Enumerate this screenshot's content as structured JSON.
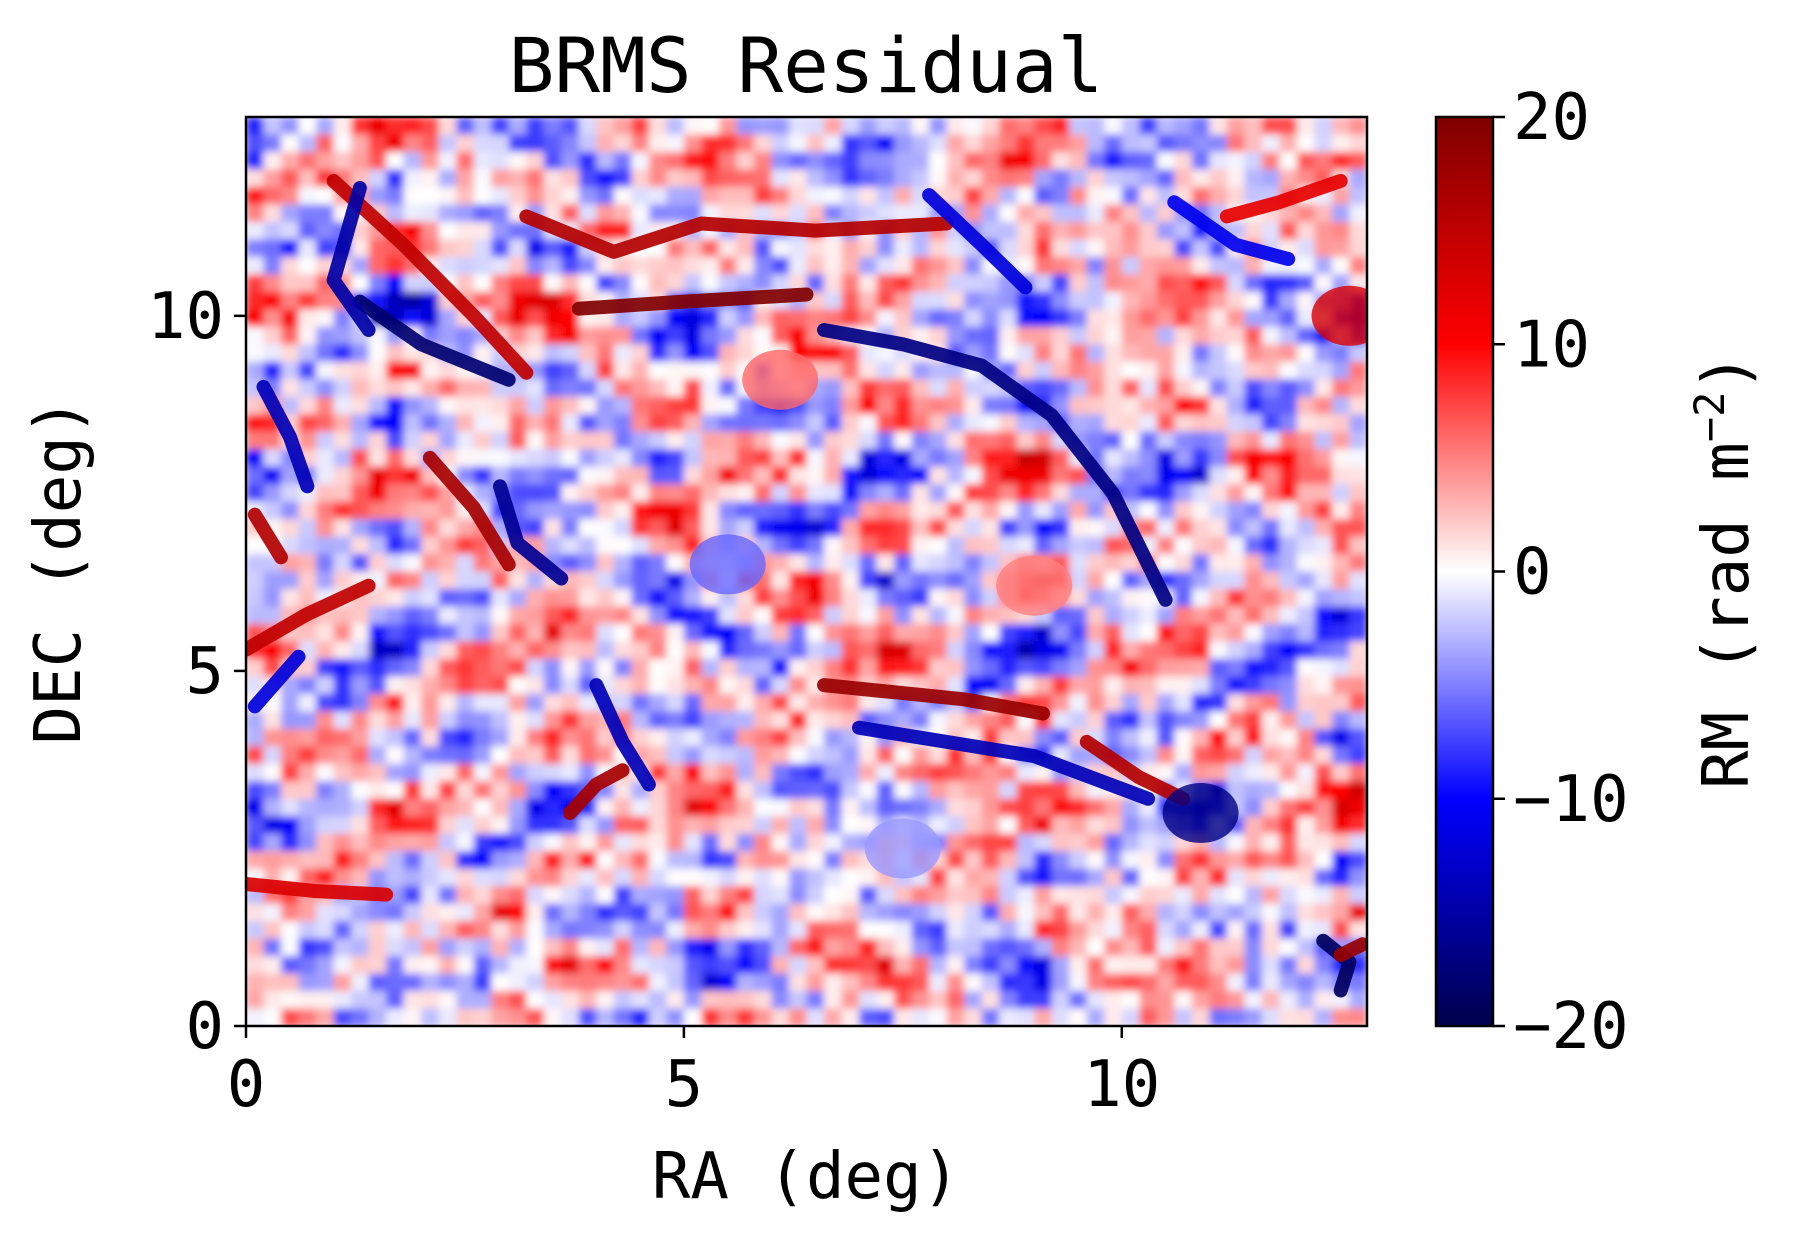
{
  "chart_data": {
    "type": "heatmap",
    "title": "BRMS Residual",
    "xlabel": "RA (deg)",
    "ylabel": "DEC (deg)",
    "xlim": [
      0,
      12.8
    ],
    "ylim": [
      0,
      12.8
    ],
    "xticks": [
      0,
      5,
      10
    ],
    "xtick_labels": [
      "0",
      "5",
      "10"
    ],
    "yticks": [
      0,
      5,
      10
    ],
    "ytick_labels": [
      "0",
      "5",
      "10"
    ],
    "colormap": "seismic",
    "colors": {
      "min": "#00004c",
      "low": "#0000ff",
      "mid": "#ffffff",
      "high": "#ff0000",
      "max": "#800000"
    },
    "colorbar": {
      "label": "RM (rad m",
      "label_exponent": "−2",
      "label_close": ")",
      "range": [
        -20,
        20
      ],
      "ticks": [
        -20,
        -10,
        0,
        10,
        20
      ],
      "tick_labels": [
        "−20",
        "−10",
        "0",
        "10",
        "20"
      ]
    },
    "features": [
      {
        "kind": "filament",
        "points": [
          [
            3.8,
            10.1
          ],
          [
            5.0,
            10.2
          ],
          [
            6.4,
            10.3
          ]
        ],
        "value": 20
      },
      {
        "kind": "filament",
        "points": [
          [
            6.6,
            9.8
          ],
          [
            7.5,
            9.6
          ],
          [
            8.4,
            9.3
          ],
          [
            9.2,
            8.6
          ],
          [
            9.9,
            7.5
          ],
          [
            10.5,
            6.0
          ]
        ],
        "value": -17
      },
      {
        "kind": "filament",
        "points": [
          [
            3.2,
            11.4
          ],
          [
            4.2,
            10.9
          ],
          [
            5.2,
            11.3
          ],
          [
            6.5,
            11.2
          ],
          [
            8.0,
            11.3
          ]
        ],
        "value": 16
      },
      {
        "kind": "filament",
        "points": [
          [
            1.0,
            11.9
          ],
          [
            1.8,
            11.0
          ],
          [
            2.6,
            10.0
          ],
          [
            3.2,
            9.2
          ]
        ],
        "value": 15
      },
      {
        "kind": "filament",
        "points": [
          [
            1.3,
            10.2
          ],
          [
            2.0,
            9.6
          ],
          [
            3.0,
            9.1
          ]
        ],
        "value": -18
      },
      {
        "kind": "filament",
        "points": [
          [
            1.3,
            11.8
          ],
          [
            1.0,
            10.5
          ],
          [
            1.4,
            9.8
          ]
        ],
        "value": -15
      },
      {
        "kind": "filament",
        "points": [
          [
            2.1,
            8.0
          ],
          [
            2.6,
            7.3
          ],
          [
            3.0,
            6.5
          ]
        ],
        "value": 17
      },
      {
        "kind": "filament",
        "points": [
          [
            2.9,
            7.6
          ],
          [
            3.1,
            6.8
          ],
          [
            3.6,
            6.3
          ]
        ],
        "value": -16
      },
      {
        "kind": "filament",
        "points": [
          [
            0.0,
            5.3
          ],
          [
            0.7,
            5.8
          ],
          [
            1.4,
            6.2
          ]
        ],
        "value": 15
      },
      {
        "kind": "filament",
        "points": [
          [
            0.1,
            4.5
          ],
          [
            0.6,
            5.2
          ]
        ],
        "value": -12
      },
      {
        "kind": "filament",
        "points": [
          [
            6.6,
            4.8
          ],
          [
            7.4,
            4.7
          ],
          [
            8.2,
            4.6
          ],
          [
            9.1,
            4.4
          ]
        ],
        "value": 18
      },
      {
        "kind": "filament",
        "points": [
          [
            7.0,
            4.2
          ],
          [
            8.0,
            4.0
          ],
          [
            9.0,
            3.8
          ],
          [
            10.3,
            3.2
          ]
        ],
        "value": -14
      },
      {
        "kind": "filament",
        "points": [
          [
            9.6,
            4.0
          ],
          [
            10.2,
            3.5
          ],
          [
            10.7,
            3.2
          ]
        ],
        "value": 16
      },
      {
        "kind": "filament",
        "points": [
          [
            3.7,
            3.0
          ],
          [
            4.0,
            3.4
          ],
          [
            4.3,
            3.6
          ]
        ],
        "value": 17
      },
      {
        "kind": "filament",
        "points": [
          [
            4.0,
            4.8
          ],
          [
            4.3,
            4.0
          ],
          [
            4.6,
            3.4
          ]
        ],
        "value": -14
      },
      {
        "kind": "filament",
        "points": [
          [
            0.0,
            2.0
          ],
          [
            0.8,
            1.9
          ],
          [
            1.6,
            1.85
          ]
        ],
        "value": 13
      },
      {
        "kind": "filament",
        "points": [
          [
            7.8,
            11.7
          ],
          [
            8.4,
            11.0
          ],
          [
            8.9,
            10.4
          ]
        ],
        "value": -12
      },
      {
        "kind": "filament",
        "points": [
          [
            10.6,
            11.6
          ],
          [
            11.3,
            11.0
          ],
          [
            11.9,
            10.8
          ]
        ],
        "value": -11
      },
      {
        "kind": "filament",
        "points": [
          [
            11.2,
            11.4
          ],
          [
            11.8,
            11.6
          ],
          [
            12.5,
            11.9
          ]
        ],
        "value": 12
      },
      {
        "kind": "filament",
        "points": [
          [
            0.2,
            9.0
          ],
          [
            0.5,
            8.3
          ],
          [
            0.7,
            7.6
          ]
        ],
        "value": -14
      },
      {
        "kind": "filament",
        "points": [
          [
            0.1,
            7.2
          ],
          [
            0.4,
            6.6
          ]
        ],
        "value": 16
      },
      {
        "kind": "filament",
        "points": [
          [
            12.3,
            1.2
          ],
          [
            12.6,
            0.9
          ],
          [
            12.5,
            0.5
          ]
        ],
        "value": -19
      },
      {
        "kind": "filament",
        "points": [
          [
            12.5,
            1.0
          ],
          [
            12.75,
            1.15
          ]
        ],
        "value": 18
      },
      {
        "kind": "blob",
        "center": [
          10.9,
          3.0
        ],
        "value": -17
      },
      {
        "kind": "blob",
        "center": [
          12.6,
          10.0
        ],
        "value": 13
      },
      {
        "kind": "blob",
        "center": [
          6.1,
          9.1
        ],
        "value": 6
      },
      {
        "kind": "blob",
        "center": [
          5.5,
          6.5
        ],
        "value": -6
      },
      {
        "kind": "blob",
        "center": [
          9.0,
          6.2
        ],
        "value": 5
      },
      {
        "kind": "blob",
        "center": [
          7.5,
          2.5
        ],
        "value": -4
      }
    ]
  }
}
